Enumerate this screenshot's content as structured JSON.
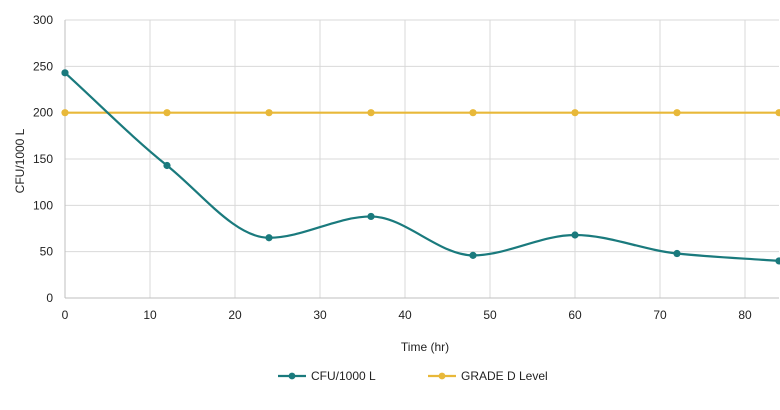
{
  "chart_data": {
    "type": "line",
    "xlabel": "Time (hr)",
    "ylabel": "CFU/1000 L",
    "xlim": [
      0,
      84
    ],
    "ylim": [
      0,
      300
    ],
    "x_ticks": [
      0,
      10,
      20,
      30,
      40,
      50,
      60,
      70,
      80
    ],
    "y_ticks": [
      0,
      50,
      100,
      150,
      200,
      250,
      300
    ],
    "grid": true,
    "legend_position": "bottom",
    "series": [
      {
        "name": "CFU/1000 L",
        "color": "#1a7a7d",
        "smooth": true,
        "x": [
          0,
          12,
          24,
          36,
          48,
          60,
          72,
          84
        ],
        "values": [
          243,
          143,
          65,
          88,
          46,
          68,
          48,
          40
        ]
      },
      {
        "name": "GRADE D Level",
        "color": "#e8b839",
        "smooth": false,
        "x": [
          0,
          12,
          24,
          36,
          48,
          60,
          72,
          84
        ],
        "values": [
          200,
          200,
          200,
          200,
          200,
          200,
          200,
          200
        ]
      }
    ]
  }
}
